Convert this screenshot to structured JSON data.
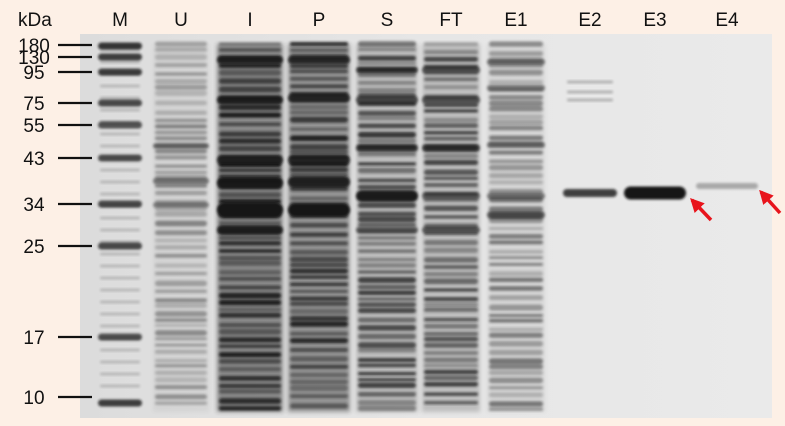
{
  "figure": {
    "unit_label": "kDa",
    "lanes": [
      "M",
      "U",
      "I",
      "P",
      "S",
      "FT",
      "E1",
      "E2",
      "E3",
      "E4"
    ],
    "markers": [
      "180",
      "130",
      "95",
      "75",
      "55",
      "43",
      "34",
      "25",
      "17",
      "10"
    ],
    "arrow_color": "#e8141c"
  }
}
